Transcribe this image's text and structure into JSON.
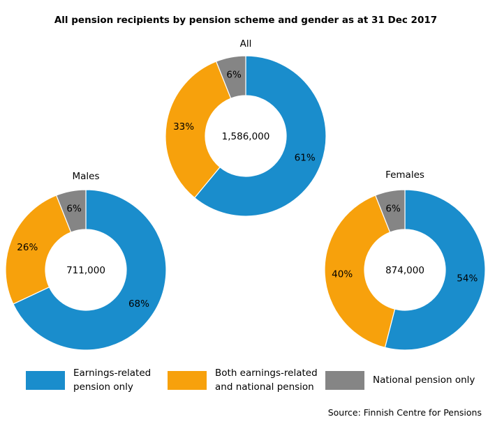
{
  "chart_data": {
    "type": "pie",
    "variant": "donut",
    "title": "All pension recipients by pension scheme and gender as at 31 Dec 2017",
    "source": "Source: Finnish Centre for Pensions",
    "legend_position": "bottom",
    "series": [
      {
        "name": "Earnings-related\npension only",
        "color": "#1A8DCC"
      },
      {
        "name": "Both earnings-related\nand national pension",
        "color": "#F7A10C"
      },
      {
        "name": "National pension only",
        "color": "#858585"
      }
    ],
    "charts": [
      {
        "label": "All",
        "total": "1,586,000",
        "values": [
          61,
          33,
          6
        ],
        "value_labels": [
          "61%",
          "33%",
          "6%"
        ]
      },
      {
        "label": "Males",
        "total": "711,000",
        "values": [
          68,
          26,
          6
        ],
        "value_labels": [
          "68%",
          "26%",
          "6%"
        ]
      },
      {
        "label": "Females",
        "total": "874,000",
        "values": [
          54,
          40,
          6
        ],
        "value_labels": [
          "54%",
          "40%",
          "6%"
        ]
      }
    ]
  }
}
